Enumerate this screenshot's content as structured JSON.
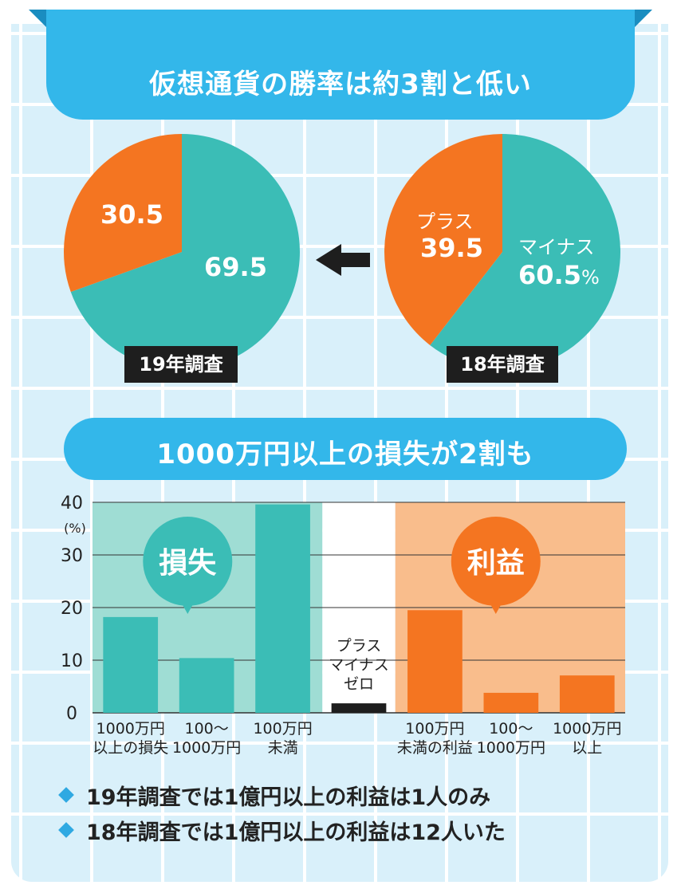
{
  "header": {
    "title": "仮想通貨の勝率は約3割と低い"
  },
  "section2": {
    "title": "1000万円以上の損失が2割も"
  },
  "chart_data": [
    {
      "type": "pie",
      "title": "19年調査",
      "slices": [
        {
          "name": "",
          "value": 69.5,
          "color": "#3bbdb6"
        },
        {
          "name": "",
          "value": 30.5,
          "color": "#f47521"
        }
      ],
      "labels": [
        "69.5",
        "30.5"
      ]
    },
    {
      "type": "pie",
      "title": "18年調査",
      "slices": [
        {
          "name": "マイナス",
          "value": 60.5,
          "color": "#3bbdb6"
        },
        {
          "name": "プラス",
          "value": 39.5,
          "color": "#f47521"
        }
      ],
      "unit": "%"
    },
    {
      "type": "bar",
      "ylabel": "(%)",
      "ylim": [
        0,
        40
      ],
      "yticks": [
        0,
        10,
        20,
        30,
        40
      ],
      "grid": true,
      "groups": [
        {
          "name": "損失",
          "color": "#3bbdb6",
          "background": "#9fddd4"
        },
        {
          "name": "利益",
          "color": "#f47521",
          "background": "#f9bd8c"
        }
      ],
      "categories": [
        [
          "1000万円",
          "以上の損失"
        ],
        [
          "100～",
          "1000万円"
        ],
        [
          "100万円",
          "未満"
        ],
        [
          "プラス",
          "マイナス",
          "ゼロ"
        ],
        [
          "100万円",
          "未満の利益"
        ],
        [
          "100～",
          "1000万円"
        ],
        [
          "1000万円",
          "以上"
        ]
      ],
      "values": [
        18.2,
        10.4,
        39.6,
        1.8,
        19.5,
        3.8,
        7.1
      ],
      "bar_groups": [
        "損失",
        "損失",
        "損失",
        "neutral",
        "利益",
        "利益",
        "利益"
      ]
    }
  ],
  "notes": [
    "19年調査では1億円以上の利益は1人のみ",
    "18年調査では1億円以上の利益は12人いた"
  ],
  "colors": {
    "accent": "#33b7ea",
    "loss": "#3bbdb6",
    "profit": "#f47521",
    "neutral": "#1e1e1e"
  },
  "icons": {
    "arrow": "left-arrow-icon",
    "bullet": "diamond-icon"
  }
}
